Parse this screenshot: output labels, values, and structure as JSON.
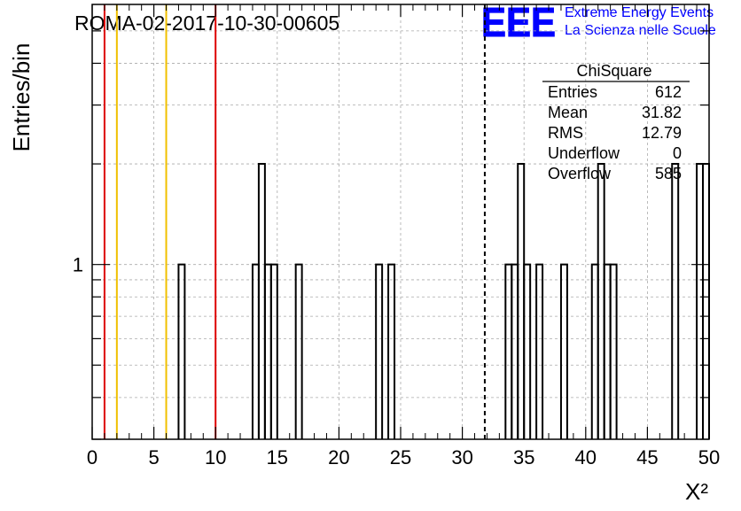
{
  "header": {
    "run_title": "ROMA-02-2017-10-30-00605",
    "logo_text": "EEE",
    "logo_line1": "Extreme Energy Events",
    "logo_line2": "La Scienza nelle Scuole",
    "brand_color": "#0000ff"
  },
  "stats": {
    "title": "ChiSquare",
    "rows": [
      {
        "label": "Entries",
        "value": "612"
      },
      {
        "label": "Mean",
        "value": "31.82"
      },
      {
        "label": "RMS",
        "value": "12.79"
      },
      {
        "label": "Underflow",
        "value": "0"
      },
      {
        "label": "Overflow",
        "value": "585"
      }
    ]
  },
  "chart_data": {
    "type": "bar",
    "histogram": true,
    "log_scale_y": true,
    "xlabel": "X²",
    "ylabel": "Entries/bin",
    "xlim": [
      0,
      50
    ],
    "ylim": [
      0.3,
      6
    ],
    "x_ticks": [
      0,
      5,
      10,
      15,
      20,
      25,
      30,
      35,
      40,
      45,
      50
    ],
    "y_tick_labels": [
      {
        "value": 1,
        "label": "1"
      }
    ],
    "grid": true,
    "bin_width": 0.5,
    "bins": [
      {
        "x": 7.0,
        "count": 1
      },
      {
        "x": 13.0,
        "count": 1
      },
      {
        "x": 13.5,
        "count": 2
      },
      {
        "x": 14.0,
        "count": 1
      },
      {
        "x": 14.5,
        "count": 1
      },
      {
        "x": 16.5,
        "count": 1
      },
      {
        "x": 23.0,
        "count": 1
      },
      {
        "x": 24.0,
        "count": 1
      },
      {
        "x": 33.5,
        "count": 1
      },
      {
        "x": 34.0,
        "count": 1
      },
      {
        "x": 34.5,
        "count": 2
      },
      {
        "x": 35.0,
        "count": 1
      },
      {
        "x": 36.0,
        "count": 1
      },
      {
        "x": 38.0,
        "count": 1
      },
      {
        "x": 40.5,
        "count": 1
      },
      {
        "x": 41.0,
        "count": 2
      },
      {
        "x": 41.5,
        "count": 1
      },
      {
        "x": 42.0,
        "count": 1
      },
      {
        "x": 47.0,
        "count": 2
      },
      {
        "x": 49.0,
        "count": 2
      },
      {
        "x": 49.5,
        "count": 2
      }
    ],
    "vertical_lines": [
      {
        "x": 1.0,
        "color": "#dd0000",
        "style": "solid"
      },
      {
        "x": 2.0,
        "color": "#f0c000",
        "style": "solid"
      },
      {
        "x": 6.0,
        "color": "#f0c000",
        "style": "solid"
      },
      {
        "x": 10.0,
        "color": "#dd0000",
        "style": "solid"
      },
      {
        "x": 31.82,
        "color": "#000000",
        "style": "dashed"
      }
    ]
  }
}
